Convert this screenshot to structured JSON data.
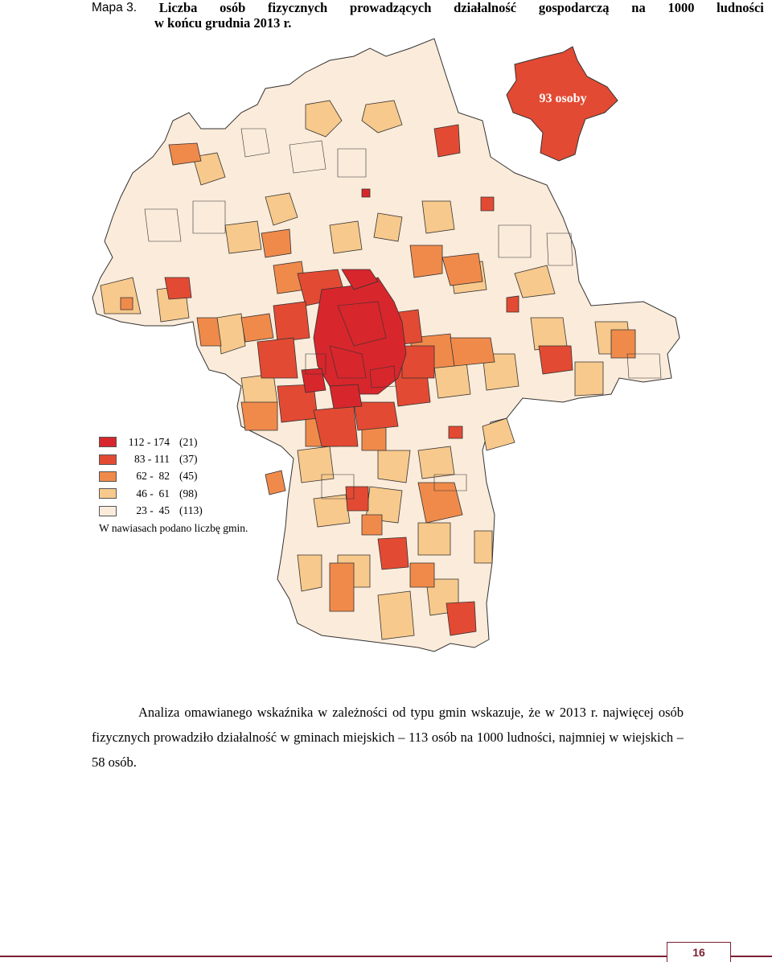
{
  "caption": {
    "label": "Mapa 3.",
    "title_line1_words": [
      "Liczba",
      "osób",
      "fizycznych",
      "prowadzących",
      "działalność",
      "gospodarczą",
      "na",
      "1000",
      "ludności"
    ],
    "title_line2": "w końcu grudnia 2013 r."
  },
  "inset": {
    "label": "93 osoby",
    "color": "#e34a33"
  },
  "legend": {
    "items": [
      {
        "range": "112 - 174",
        "count": "(21)",
        "color": "#d7262c"
      },
      {
        "range": "83 - 111",
        "count": "(37)",
        "color": "#e34a33"
      },
      {
        "range": "62 -  82",
        "count": "(45)",
        "color": "#f08a4b"
      },
      {
        "range": "46 -  61",
        "count": "(98)",
        "color": "#f7c98c"
      },
      {
        "range": "23 -  45",
        "count": "(113)",
        "color": "#fbebda"
      }
    ],
    "note": "W nawiasach podano liczbę  gmin."
  },
  "paragraph": "Analiza omawianego wskaźnika w zależności od typu gmin wskazuje, że w 2013 r. najwięcej osób fizycznych prowadziło działalność w gminach miejskich – 113 osób na 1000 ludności, najmniej w wiejskich – 58 osób.",
  "footer": {
    "page_number": "16",
    "accent": "#7b1f32"
  }
}
